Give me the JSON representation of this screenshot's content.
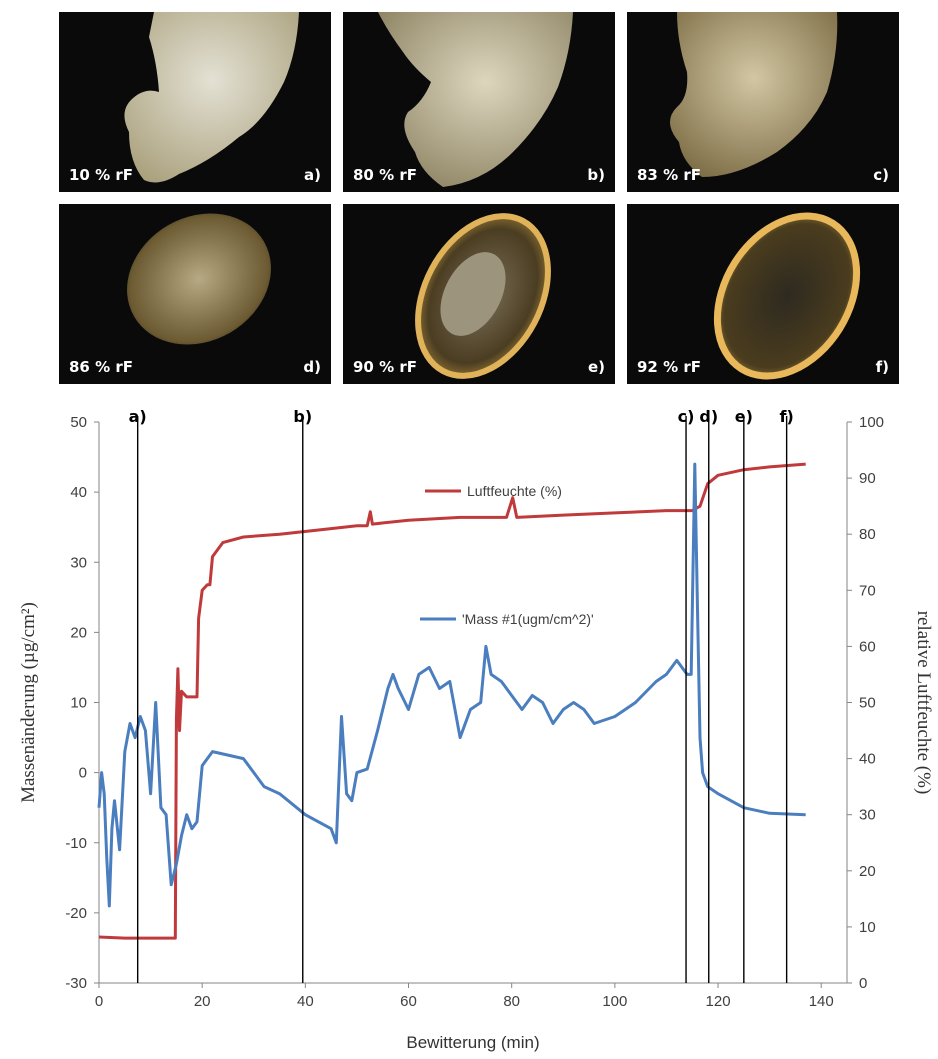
{
  "photos": [
    {
      "rh": "10 % rF",
      "label": "a)"
    },
    {
      "rh": "80 % rF",
      "label": "b)"
    },
    {
      "rh": "83 % rF",
      "label": "c)"
    },
    {
      "rh": "86 % rF",
      "label": "d)"
    },
    {
      "rh": "90 % rF",
      "label": "e)"
    },
    {
      "rh": "92 % rF",
      "label": "f)"
    }
  ],
  "chart_data": {
    "type": "line",
    "xlabel": "Bewitterung (min)",
    "ylabel_left": "Massenänderung (µg/cm²)",
    "ylabel_right": "relative Luftfeuchte (%)",
    "xlim": [
      0,
      145
    ],
    "xticks": [
      0,
      20,
      40,
      60,
      80,
      100,
      120,
      140
    ],
    "ylim_left": [
      -30,
      50
    ],
    "yticks_left": [
      -30,
      -20,
      -10,
      0,
      10,
      20,
      30,
      40,
      50
    ],
    "ylim_right": [
      0,
      100
    ],
    "yticks_right": [
      0,
      10,
      20,
      30,
      40,
      50,
      60,
      70,
      80,
      90,
      100
    ],
    "grid": false,
    "markers": [
      {
        "label": "a)",
        "x": 7.5
      },
      {
        "label": "b)",
        "x": 39.5
      },
      {
        "label": "c)",
        "x": 113.8
      },
      {
        "label": "d)",
        "x": 118.2
      },
      {
        "label": "e)",
        "x": 125
      },
      {
        "label": "f)",
        "x": 133.3
      }
    ],
    "series": [
      {
        "name": "Luftfeuchte (%)",
        "axis": "right",
        "color": "#c0393b",
        "points": [
          [
            0,
            8.2
          ],
          [
            5,
            8
          ],
          [
            10,
            8
          ],
          [
            14.8,
            8
          ],
          [
            15,
            47
          ],
          [
            15.3,
            56
          ],
          [
            15.6,
            45
          ],
          [
            16,
            52
          ],
          [
            17,
            51
          ],
          [
            19,
            51
          ],
          [
            19.3,
            65
          ],
          [
            20,
            70
          ],
          [
            21,
            71
          ],
          [
            21.5,
            71
          ],
          [
            22,
            76
          ],
          [
            24,
            78.5
          ],
          [
            28,
            79.5
          ],
          [
            35,
            80
          ],
          [
            45,
            81
          ],
          [
            50,
            81.5
          ],
          [
            52,
            81.5
          ],
          [
            52.6,
            84
          ],
          [
            53,
            81.8
          ],
          [
            60,
            82.5
          ],
          [
            70,
            83
          ],
          [
            79,
            83
          ],
          [
            80.2,
            86.5
          ],
          [
            81,
            83
          ],
          [
            90,
            83.4
          ],
          [
            100,
            83.8
          ],
          [
            110,
            84.2
          ],
          [
            115,
            84.2
          ],
          [
            116.5,
            85
          ],
          [
            118,
            89
          ],
          [
            120,
            90.5
          ],
          [
            125,
            91.5
          ],
          [
            130,
            92
          ],
          [
            137,
            92.5
          ]
        ]
      },
      {
        "name": "'Mass #1(ugm/cm^2)'",
        "axis": "left",
        "color": "#4a7ebf",
        "points": [
          [
            0,
            -5
          ],
          [
            0.5,
            0
          ],
          [
            1,
            -3
          ],
          [
            1.5,
            -12
          ],
          [
            2,
            -19
          ],
          [
            2.5,
            -8
          ],
          [
            3,
            -4
          ],
          [
            4,
            -11
          ],
          [
            5,
            3
          ],
          [
            6,
            7
          ],
          [
            7,
            5
          ],
          [
            8,
            8
          ],
          [
            9,
            6
          ],
          [
            10,
            -3
          ],
          [
            11,
            10
          ],
          [
            12,
            -5
          ],
          [
            13,
            -6
          ],
          [
            14,
            -16
          ],
          [
            15,
            -13
          ],
          [
            16,
            -9
          ],
          [
            17,
            -6
          ],
          [
            18,
            -8
          ],
          [
            19,
            -7
          ],
          [
            20,
            1
          ],
          [
            22,
            3
          ],
          [
            25,
            2.5
          ],
          [
            28,
            2
          ],
          [
            30,
            0
          ],
          [
            32,
            -2
          ],
          [
            35,
            -3
          ],
          [
            40,
            -6
          ],
          [
            45,
            -8
          ],
          [
            46,
            -10
          ],
          [
            47,
            8
          ],
          [
            48,
            -3
          ],
          [
            49,
            -4
          ],
          [
            50,
            0
          ],
          [
            52,
            0.5
          ],
          [
            54,
            6
          ],
          [
            56,
            12
          ],
          [
            57,
            14
          ],
          [
            58,
            12
          ],
          [
            60,
            9
          ],
          [
            62,
            14
          ],
          [
            64,
            15
          ],
          [
            66,
            12
          ],
          [
            68,
            13
          ],
          [
            70,
            5
          ],
          [
            72,
            9
          ],
          [
            74,
            10
          ],
          [
            75,
            18
          ],
          [
            76,
            14
          ],
          [
            78,
            13
          ],
          [
            80,
            11
          ],
          [
            82,
            9
          ],
          [
            84,
            11
          ],
          [
            86,
            10
          ],
          [
            88,
            7
          ],
          [
            90,
            9
          ],
          [
            92,
            10
          ],
          [
            94,
            9
          ],
          [
            96,
            7
          ],
          [
            100,
            8
          ],
          [
            104,
            10
          ],
          [
            108,
            13
          ],
          [
            110,
            14
          ],
          [
            112,
            16
          ],
          [
            114,
            14
          ],
          [
            114.8,
            14
          ],
          [
            115.5,
            44
          ],
          [
            116,
            24
          ],
          [
            116.5,
            5
          ],
          [
            117,
            0
          ],
          [
            118,
            -2
          ],
          [
            120,
            -3
          ],
          [
            125,
            -5
          ],
          [
            130,
            -5.8
          ],
          [
            137,
            -6
          ]
        ]
      }
    ]
  }
}
